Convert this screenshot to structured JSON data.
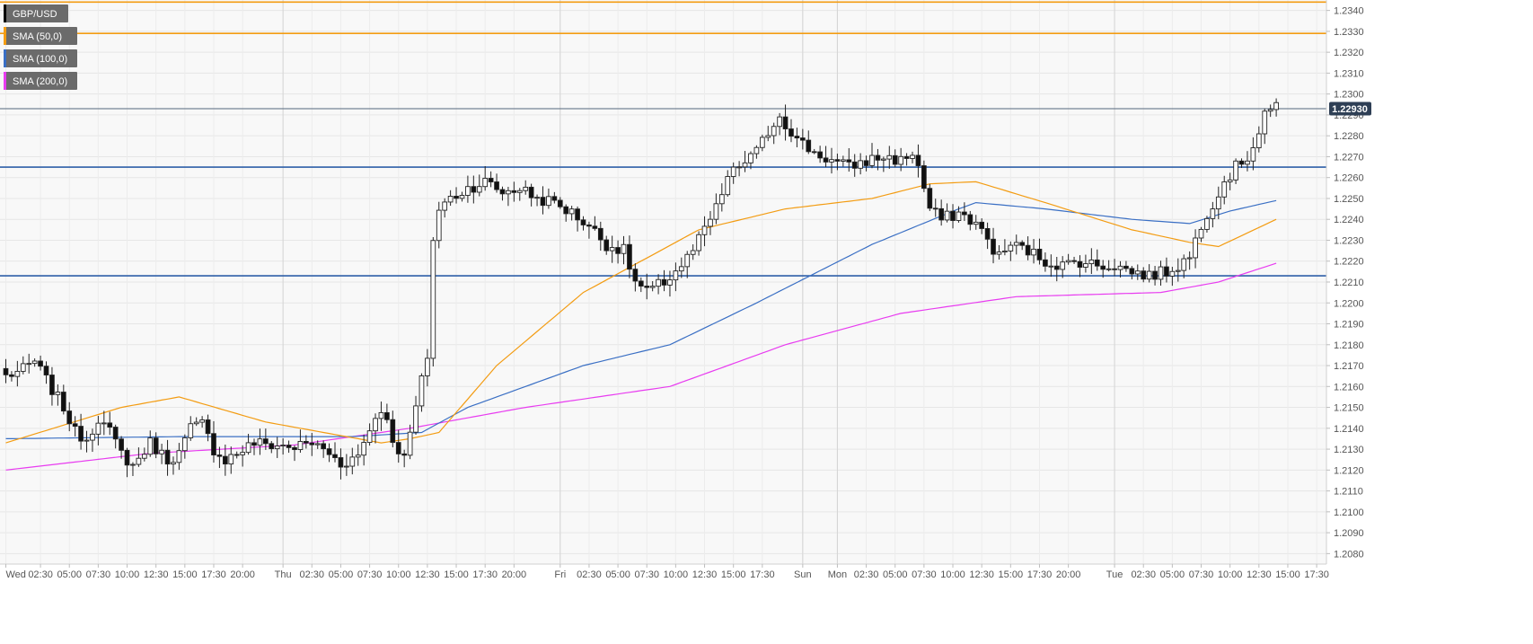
{
  "chart_data": {
    "type": "candlestick",
    "symbol": "GBP/USD",
    "current_price": "1.22930",
    "legend": [
      {
        "label": "GBP/USD",
        "color": "#000000"
      },
      {
        "label": "SMA (50,0)",
        "color": "#f39c12"
      },
      {
        "label": "SMA (100,0)",
        "color": "#3a6fc4"
      },
      {
        "label": "SMA (200,0)",
        "color": "#e83cf0"
      }
    ],
    "y_axis": {
      "min": 1.2075,
      "max": 1.2345,
      "ticks": [
        "1.2080",
        "1.2090",
        "1.2100",
        "1.2110",
        "1.2120",
        "1.2130",
        "1.2140",
        "1.2150",
        "1.2160",
        "1.2170",
        "1.2180",
        "1.2190",
        "1.2200",
        "1.2210",
        "1.2220",
        "1.2230",
        "1.2240",
        "1.2250",
        "1.2260",
        "1.2270",
        "1.2280",
        "1.2290",
        "1.2300",
        "1.2310",
        "1.2320",
        "1.2330",
        "1.2340"
      ]
    },
    "x_axis": {
      "n_bars": 221,
      "ticks": [
        {
          "i": 0,
          "label": "Wed"
        },
        {
          "i": 6,
          "label": "02:30"
        },
        {
          "i": 11,
          "label": "05:00"
        },
        {
          "i": 16,
          "label": "07:30"
        },
        {
          "i": 21,
          "label": "10:00"
        },
        {
          "i": 26,
          "label": "12:30"
        },
        {
          "i": 31,
          "label": "15:00"
        },
        {
          "i": 36,
          "label": "17:30"
        },
        {
          "i": 41,
          "label": "20:00"
        },
        {
          "i": 48,
          "label": "Thu"
        },
        {
          "i": 53,
          "label": "02:30"
        },
        {
          "i": 58,
          "label": "05:00"
        },
        {
          "i": 63,
          "label": "07:30"
        },
        {
          "i": 68,
          "label": "10:00"
        },
        {
          "i": 73,
          "label": "12:30"
        },
        {
          "i": 78,
          "label": "15:00"
        },
        {
          "i": 83,
          "label": "17:30"
        },
        {
          "i": 88,
          "label": "20:00"
        },
        {
          "i": 96,
          "label": "Fri"
        },
        {
          "i": 101,
          "label": "02:30"
        },
        {
          "i": 106,
          "label": "05:00"
        },
        {
          "i": 111,
          "label": "07:30"
        },
        {
          "i": 116,
          "label": "10:00"
        },
        {
          "i": 121,
          "label": "12:30"
        },
        {
          "i": 126,
          "label": "15:00"
        },
        {
          "i": 131,
          "label": "17:30"
        },
        {
          "i": 138,
          "label": "Sun"
        },
        {
          "i": 144,
          "label": "Mon"
        },
        {
          "i": 149,
          "label": "02:30"
        },
        {
          "i": 154,
          "label": "05:00"
        },
        {
          "i": 159,
          "label": "07:30"
        },
        {
          "i": 164,
          "label": "10:00"
        },
        {
          "i": 169,
          "label": "12:30"
        },
        {
          "i": 174,
          "label": "15:00"
        },
        {
          "i": 179,
          "label": "17:30"
        },
        {
          "i": 184,
          "label": "20:00"
        },
        {
          "i": 192,
          "label": "Tue"
        },
        {
          "i": 197,
          "label": "02:30"
        },
        {
          "i": 202,
          "label": "05:00"
        },
        {
          "i": 207,
          "label": "07:30"
        },
        {
          "i": 212,
          "label": "10:00"
        },
        {
          "i": 217,
          "label": "12:30"
        },
        {
          "i": 222,
          "label": "15:00"
        },
        {
          "i": 227,
          "label": "17:30"
        }
      ]
    },
    "separators": [
      48,
      96,
      138,
      144,
      192
    ],
    "horizontal_lines": [
      {
        "value": 1.2344,
        "color": "#f39c12"
      },
      {
        "value": 1.2329,
        "color": "#f39c12"
      },
      {
        "value": 1.2265,
        "color": "#2e5fa8"
      },
      {
        "value": 1.2213,
        "color": "#2e5fa8"
      },
      {
        "value": 1.2293,
        "color": "#55677d"
      }
    ],
    "price_anchors": [
      [
        0,
        1.2165
      ],
      [
        3,
        1.2168
      ],
      [
        5,
        1.2172
      ],
      [
        7,
        1.2163
      ],
      [
        10,
        1.215
      ],
      [
        12,
        1.2138
      ],
      [
        14,
        1.2135
      ],
      [
        16,
        1.2145
      ],
      [
        18,
        1.2138
      ],
      [
        20,
        1.2128
      ],
      [
        22,
        1.2122
      ],
      [
        25,
        1.2133
      ],
      [
        28,
        1.2125
      ],
      [
        30,
        1.2128
      ],
      [
        32,
        1.214
      ],
      [
        34,
        1.2142
      ],
      [
        36,
        1.213
      ],
      [
        38,
        1.2125
      ],
      [
        40,
        1.2128
      ],
      [
        43,
        1.2133
      ],
      [
        46,
        1.2132
      ],
      [
        50,
        1.2131
      ],
      [
        53,
        1.2133
      ],
      [
        56,
        1.2128
      ],
      [
        58,
        1.2123
      ],
      [
        61,
        1.2127
      ],
      [
        63,
        1.214
      ],
      [
        65,
        1.215
      ],
      [
        67,
        1.2135
      ],
      [
        69,
        1.2125
      ],
      [
        71,
        1.215
      ],
      [
        73,
        1.2175
      ],
      [
        74,
        1.223
      ],
      [
        75,
        1.2245
      ],
      [
        77,
        1.225
      ],
      [
        80,
        1.2255
      ],
      [
        83,
        1.2258
      ],
      [
        86,
        1.2253
      ],
      [
        89,
        1.2255
      ],
      [
        92,
        1.225
      ],
      [
        95,
        1.2248
      ],
      [
        98,
        1.2243
      ],
      [
        101,
        1.2237
      ],
      [
        104,
        1.2228
      ],
      [
        107,
        1.2225
      ],
      [
        109,
        1.221
      ],
      [
        111,
        1.2205
      ],
      [
        114,
        1.221
      ],
      [
        117,
        1.2218
      ],
      [
        119,
        1.2225
      ],
      [
        121,
        1.2235
      ],
      [
        123,
        1.2245
      ],
      [
        125,
        1.226
      ],
      [
        128,
        1.2268
      ],
      [
        130,
        1.2272
      ],
      [
        132,
        1.2282
      ],
      [
        134,
        1.229
      ],
      [
        137,
        1.2278
      ],
      [
        140,
        1.2272
      ],
      [
        143,
        1.2268
      ],
      [
        146,
        1.2265
      ],
      [
        149,
        1.2268
      ],
      [
        152,
        1.227
      ],
      [
        155,
        1.2268
      ],
      [
        157,
        1.2272
      ],
      [
        158,
        1.2265
      ],
      [
        160,
        1.2245
      ],
      [
        162,
        1.224
      ],
      [
        165,
        1.2243
      ],
      [
        168,
        1.2238
      ],
      [
        170,
        1.223
      ],
      [
        172,
        1.2222
      ],
      [
        174,
        1.2228
      ],
      [
        177,
        1.2225
      ],
      [
        180,
        1.222
      ],
      [
        183,
        1.2218
      ],
      [
        186,
        1.222
      ],
      [
        189,
        1.2218
      ],
      [
        192,
        1.2218
      ],
      [
        195,
        1.2215
      ],
      [
        198,
        1.2213
      ],
      [
        201,
        1.2215
      ],
      [
        203,
        1.2218
      ],
      [
        205,
        1.2222
      ],
      [
        207,
        1.2238
      ],
      [
        209,
        1.2248
      ],
      [
        211,
        1.2258
      ],
      [
        213,
        1.2265
      ],
      [
        215,
        1.227
      ],
      [
        217,
        1.2282
      ],
      [
        218,
        1.2292
      ],
      [
        220,
        1.2293
      ]
    ],
    "sma_50": [
      [
        0,
        1.2133
      ],
      [
        20,
        1.215
      ],
      [
        30,
        1.2155
      ],
      [
        45,
        1.2143
      ],
      [
        65,
        1.2133
      ],
      [
        70,
        1.2135
      ],
      [
        75,
        1.2138
      ],
      [
        85,
        1.217
      ],
      [
        100,
        1.2205
      ],
      [
        110,
        1.222
      ],
      [
        120,
        1.2235
      ],
      [
        135,
        1.2245
      ],
      [
        150,
        1.225
      ],
      [
        160,
        1.2257
      ],
      [
        168,
        1.2258
      ],
      [
        180,
        1.2248
      ],
      [
        195,
        1.2235
      ],
      [
        205,
        1.2229
      ],
      [
        210,
        1.2227
      ],
      [
        220,
        1.224
      ]
    ],
    "sma_100": [
      [
        0,
        1.2135
      ],
      [
        30,
        1.2136
      ],
      [
        60,
        1.2136
      ],
      [
        72,
        1.2138
      ],
      [
        80,
        1.215
      ],
      [
        100,
        1.217
      ],
      [
        115,
        1.218
      ],
      [
        130,
        1.22
      ],
      [
        150,
        1.2228
      ],
      [
        165,
        1.2245
      ],
      [
        168,
        1.2248
      ],
      [
        180,
        1.2245
      ],
      [
        195,
        1.224
      ],
      [
        205,
        1.2238
      ],
      [
        212,
        1.2244
      ],
      [
        220,
        1.2249
      ]
    ],
    "sma_200": [
      [
        0,
        1.212
      ],
      [
        25,
        1.2128
      ],
      [
        50,
        1.2132
      ],
      [
        70,
        1.214
      ],
      [
        90,
        1.215
      ],
      [
        115,
        1.216
      ],
      [
        135,
        1.218
      ],
      [
        155,
        1.2195
      ],
      [
        175,
        1.2203
      ],
      [
        200,
        1.2205
      ],
      [
        210,
        1.221
      ],
      [
        220,
        1.2219
      ]
    ]
  }
}
